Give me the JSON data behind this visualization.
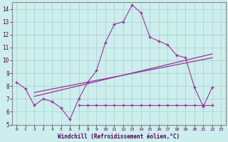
{
  "xlabel": "Windchill (Refroidissement éolien,°C)",
  "background_color": "#cceeed",
  "grid_color": "#aacccc",
  "line_color": "#993399",
  "xlim": [
    -0.5,
    23.5
  ],
  "ylim": [
    5,
    14.5
  ],
  "xticks": [
    0,
    1,
    2,
    3,
    4,
    5,
    6,
    7,
    8,
    9,
    10,
    11,
    12,
    13,
    14,
    15,
    16,
    17,
    18,
    19,
    20,
    21,
    22,
    23
  ],
  "yticks": [
    5,
    6,
    7,
    8,
    9,
    10,
    11,
    12,
    13,
    14
  ],
  "series1_x": [
    0,
    1,
    2,
    3,
    4,
    5,
    6,
    7,
    8,
    9,
    10,
    11,
    12,
    13,
    14,
    15,
    16,
    17,
    18,
    19,
    20,
    21,
    22
  ],
  "series1_y": [
    8.3,
    7.8,
    6.5,
    7.0,
    6.8,
    6.3,
    5.4,
    7.0,
    8.3,
    9.2,
    11.4,
    12.8,
    13.0,
    14.3,
    13.7,
    11.8,
    11.5,
    11.2,
    10.4,
    10.2,
    7.9,
    6.4,
    7.9
  ],
  "series2_x": [
    7,
    8,
    9,
    10,
    11,
    12,
    13,
    14,
    15,
    16,
    17,
    18,
    19,
    20,
    21,
    22
  ],
  "series2_y": [
    6.5,
    6.5,
    6.5,
    6.5,
    6.5,
    6.5,
    6.5,
    6.5,
    6.5,
    6.5,
    6.5,
    6.5,
    6.5,
    6.5,
    6.5,
    6.5
  ],
  "series3_x": [
    2,
    22
  ],
  "series3_y": [
    7.2,
    10.5
  ],
  "series4_x": [
    2,
    22
  ],
  "series4_y": [
    7.5,
    10.2
  ]
}
